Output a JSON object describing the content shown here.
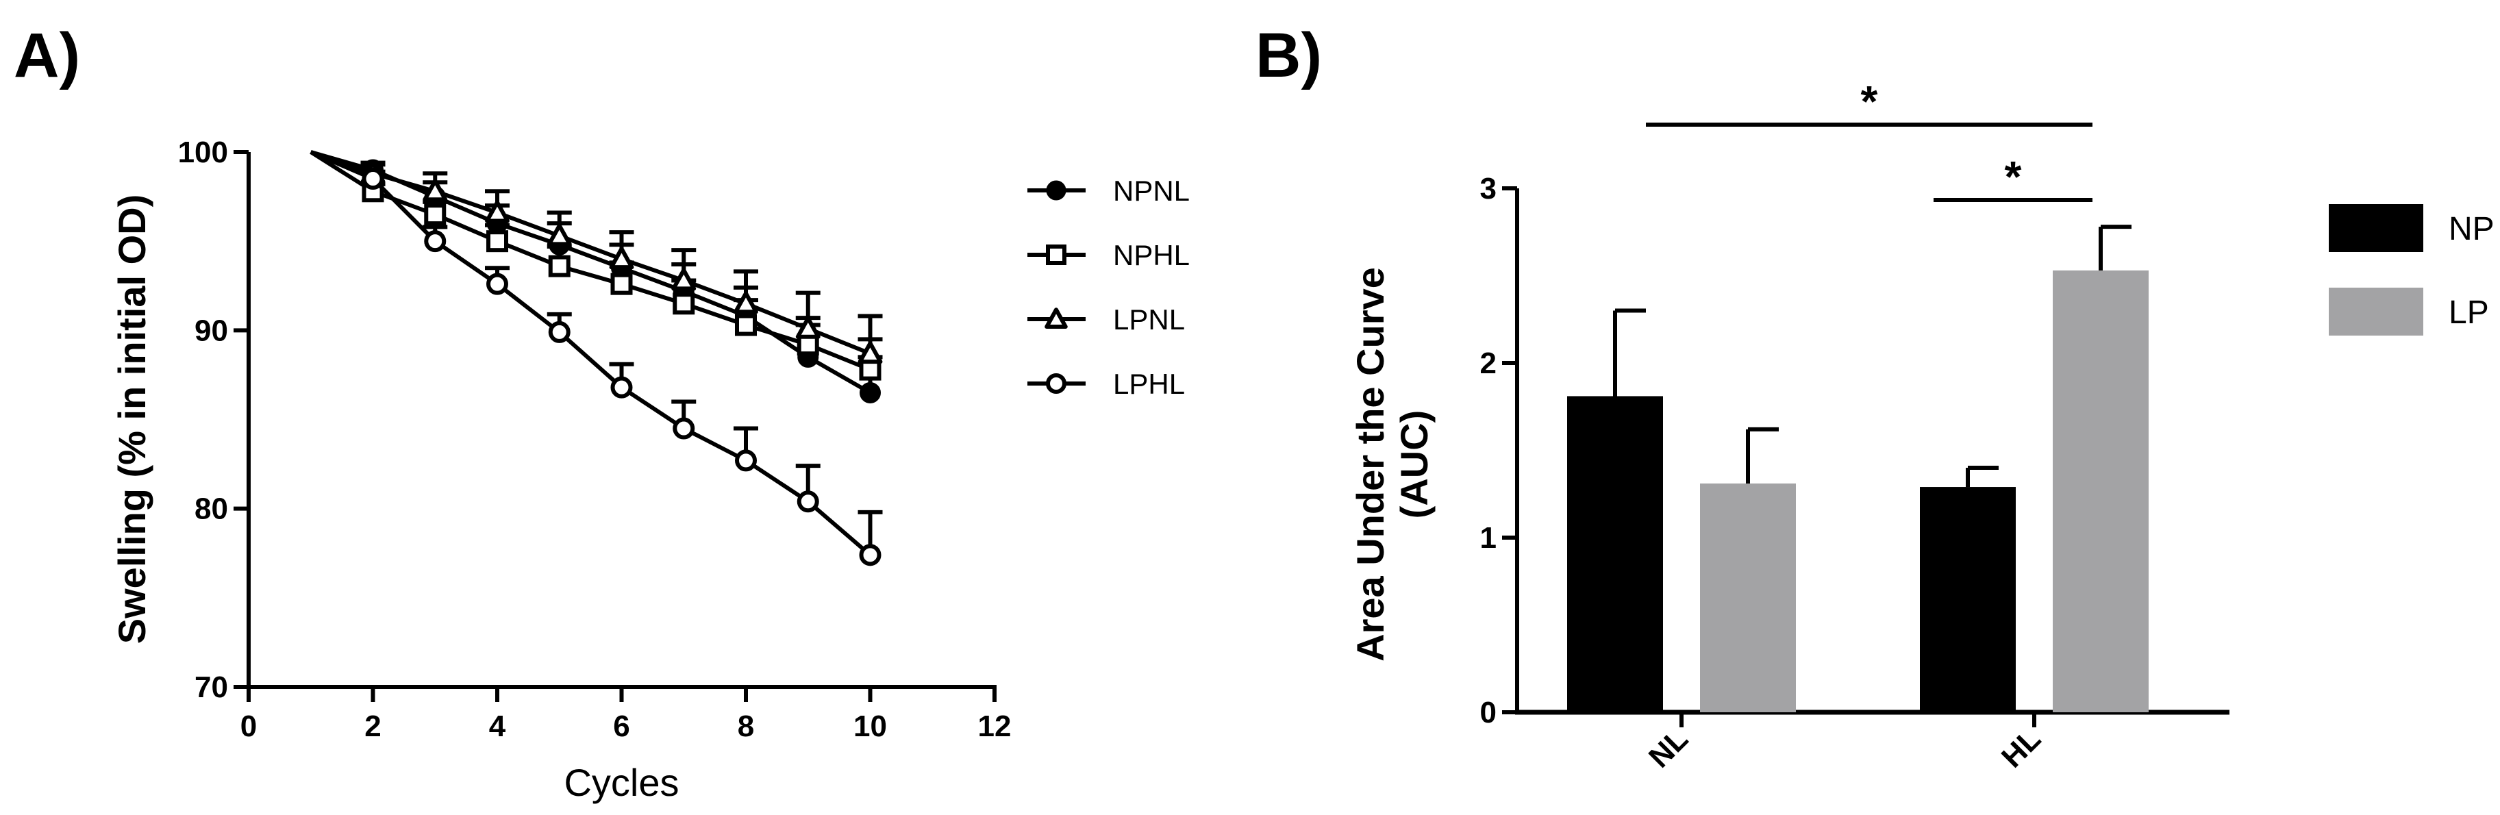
{
  "chart_data": [
    {
      "panel_label": "A)",
      "type": "line",
      "xlabel": "Cycles",
      "ylabel": "Swelling (% in initial OD)",
      "xlim": [
        0,
        12
      ],
      "ylim": [
        70,
        100
      ],
      "xticks": [
        "0",
        "2",
        "4",
        "6",
        "8",
        "10",
        "12"
      ],
      "yticks": [
        "70",
        "80",
        "90",
        "100"
      ],
      "legend_position": "right",
      "series": [
        {
          "name": "NPNL",
          "marker": "filled-circle",
          "x": [
            1,
            2,
            3,
            4,
            5,
            6,
            7,
            8,
            9,
            10
          ],
          "y": [
            100,
            99.0,
            97.5,
            96.0,
            94.8,
            93.5,
            92.2,
            90.8,
            88.5,
            86.5
          ],
          "err": [
            0,
            0.4,
            0.8,
            1.0,
            1.2,
            1.3,
            1.5,
            1.6,
            1.8,
            2.0
          ]
        },
        {
          "name": "NPHL",
          "marker": "open-square",
          "x": [
            1,
            2,
            3,
            4,
            5,
            6,
            7,
            8,
            9,
            10
          ],
          "y": [
            100,
            97.8,
            96.5,
            95.0,
            93.6,
            92.6,
            91.5,
            90.3,
            89.2,
            87.8
          ],
          "err": [
            0,
            0.4,
            0.7,
            0.9,
            1.1,
            1.2,
            1.3,
            1.4,
            1.5,
            1.7
          ]
        },
        {
          "name": "LPNL",
          "marker": "open-triangle",
          "x": [
            1,
            2,
            3,
            4,
            5,
            6,
            7,
            8,
            9,
            10
          ],
          "y": [
            100,
            98.8,
            97.8,
            96.6,
            95.3,
            94.0,
            92.8,
            91.5,
            90.1,
            88.7
          ],
          "err": [
            0,
            0.5,
            1.0,
            1.2,
            1.3,
            1.5,
            1.7,
            1.8,
            2.0,
            2.1
          ]
        },
        {
          "name": "LPHL",
          "marker": "open-circle",
          "x": [
            1,
            2,
            3,
            4,
            5,
            6,
            7,
            8,
            9,
            10
          ],
          "y": [
            100,
            98.5,
            95.0,
            92.6,
            89.9,
            86.8,
            84.5,
            82.7,
            80.4,
            77.4
          ],
          "err": [
            0,
            0.4,
            0.8,
            0.9,
            1.0,
            1.3,
            1.5,
            1.8,
            2.0,
            2.4
          ]
        }
      ]
    },
    {
      "panel_label": "B)",
      "type": "bar",
      "ylabel_lines": [
        "Area Under the Curve",
        "(AUC)"
      ],
      "categories": [
        "NL",
        "HL"
      ],
      "ylim": [
        0,
        3
      ],
      "yticks": [
        "0",
        "1",
        "2",
        "3"
      ],
      "legend_position": "right",
      "series": [
        {
          "name": "NP",
          "color": "#000000",
          "values": [
            1.81,
            1.29
          ],
          "err": [
            0.49,
            0.11
          ]
        },
        {
          "name": "LP",
          "color": "#a3a3a5",
          "values": [
            1.31,
            2.53
          ],
          "err": [
            0.31,
            0.25
          ]
        }
      ],
      "annotations": [
        {
          "text": "*",
          "from": "NL:NP",
          "to": "HL:LP",
          "level": "upper"
        },
        {
          "text": "*",
          "from": "HL:NP",
          "to": "HL:LP",
          "level": "lower"
        }
      ]
    }
  ]
}
